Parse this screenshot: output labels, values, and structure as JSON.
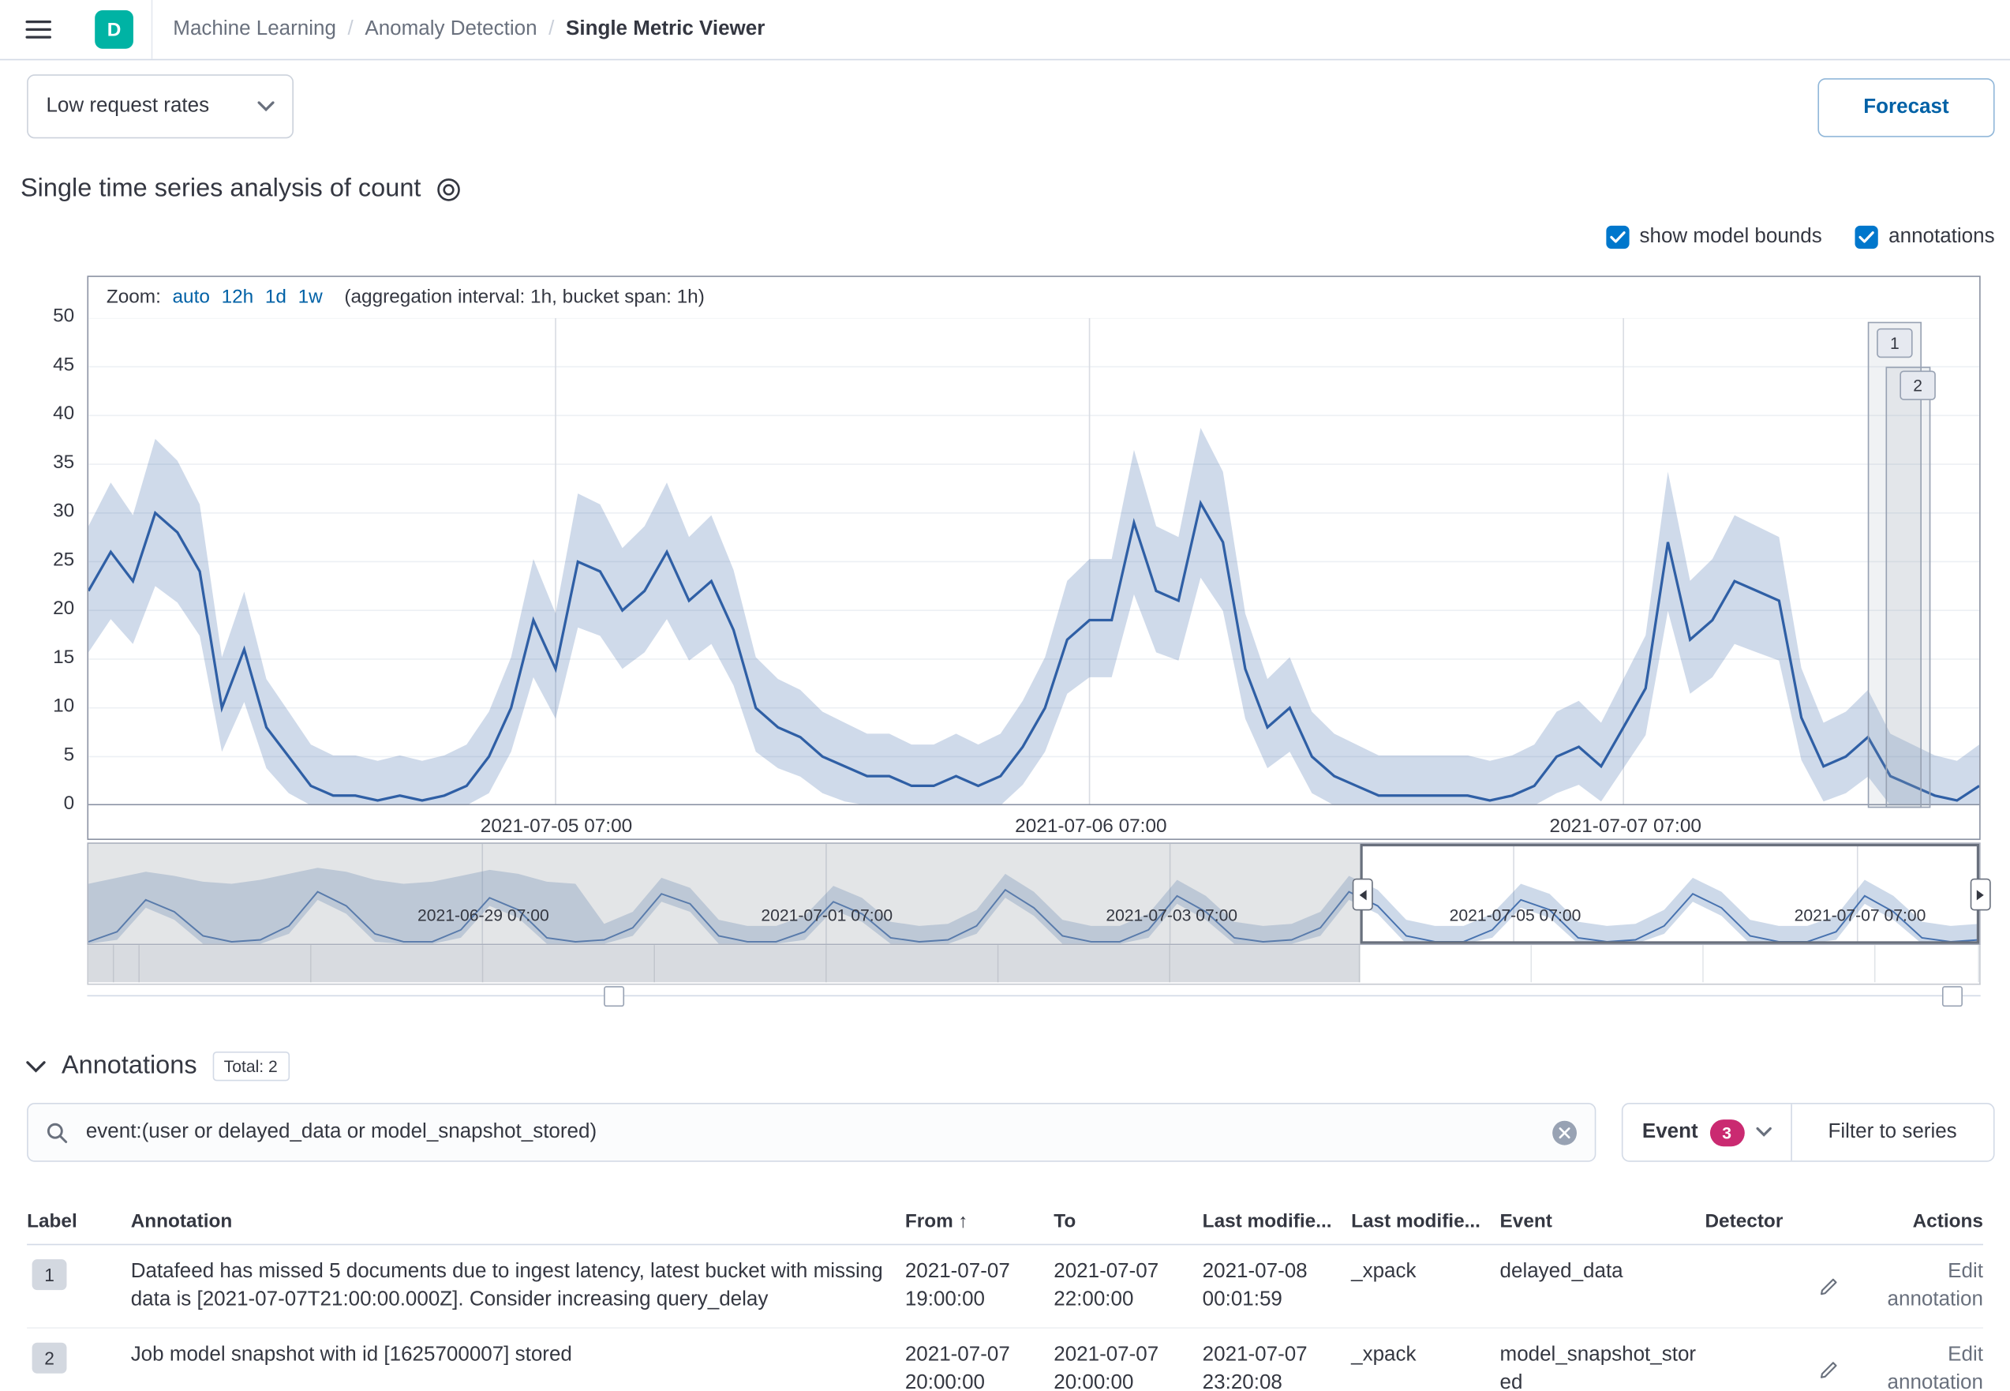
{
  "chrome": {
    "logo_letter": "D",
    "separator": "/",
    "breadcrumbs": [
      {
        "label": "Machine Learning"
      },
      {
        "label": "Anomaly Detection"
      },
      {
        "label": "Single Metric Viewer"
      }
    ]
  },
  "toolbar": {
    "job_selector": "Low request rates",
    "forecast_label": "Forecast"
  },
  "analysis": {
    "title": "Single time series analysis of count",
    "checkboxes": [
      {
        "label": "show model bounds",
        "checked": true
      },
      {
        "label": "annotations",
        "checked": true
      }
    ]
  },
  "chart": {
    "zoom_label": "Zoom:",
    "zoom_options": [
      "auto",
      "12h",
      "1d",
      "1w"
    ],
    "zoom_suffix": "(aggregation interval: 1h, bucket span: 1h)",
    "y_tick_labels": [
      "50",
      "45",
      "40",
      "35",
      "30",
      "25",
      "20",
      "15",
      "10",
      "5",
      "0"
    ]
  },
  "colors": {
    "line_blue": "#2f5fa5",
    "bounds_fill": "#3866a9",
    "link_blue": "#0061a6",
    "checkbox_blue": "#0077cc",
    "accent_pink": "#ca2a71",
    "logo_teal": "#00b3a4"
  },
  "icons": {
    "menu": "hamburger",
    "dataset": "ring",
    "search": "magnifier",
    "clear": "circle-x",
    "edit": "pencil",
    "chevron": "chevron-down",
    "brush_left": "triangle-left",
    "brush_right": "triangle-right"
  },
  "chart_data": {
    "type": "line",
    "title": "Single time series analysis of count",
    "series_name": "count",
    "start": "2021-07-04 10:00",
    "interval": "1h",
    "ylim": [
      0,
      50
    ],
    "y_ticks": [
      0,
      5,
      10,
      15,
      20,
      25,
      30,
      35,
      40,
      45,
      50
    ],
    "x_tick_labels": [
      "2021-07-05 07:00",
      "2021-07-06 07:00",
      "2021-07-07 07:00"
    ],
    "x_tick_indices": [
      21,
      45,
      69
    ],
    "values": [
      22,
      26,
      23,
      30,
      28,
      24,
      10,
      16,
      8,
      5,
      2,
      1,
      1,
      0.5,
      1,
      0.5,
      1,
      2,
      5,
      10,
      19,
      14,
      25,
      24,
      20,
      22,
      26,
      21,
      23,
      18,
      10,
      8,
      7,
      5,
      4,
      3,
      3,
      2,
      2,
      3,
      2,
      3,
      6,
      10,
      17,
      19,
      19,
      29,
      22,
      21,
      31,
      27,
      14,
      8,
      10,
      5,
      3,
      2,
      1,
      1,
      1,
      1,
      1,
      0.5,
      1,
      2,
      5,
      6,
      4,
      8,
      12,
      27,
      17,
      19,
      23,
      22,
      21,
      9,
      4,
      5,
      7,
      3,
      2,
      1,
      0.5,
      2
    ],
    "model_bounds_shown": true,
    "annotations": [
      {
        "label": "1",
        "x_fraction_start": 0.941,
        "x_fraction_end": 0.968
      },
      {
        "label": "2",
        "x_fraction_start": 0.9506,
        "x_fraction_end": 0.9729
      }
    ],
    "context": {
      "x_tick_labels": [
        "2021-06-29 07:00",
        "2021-07-01 07:00",
        "2021-07-03 07:00",
        "2021-07-05 07:00",
        "2021-07-07 07:00"
      ],
      "selection_start_fraction": 0.672,
      "selection_end_fraction": 1.0,
      "values": [
        1,
        6,
        22,
        16,
        4,
        1,
        2,
        9,
        26,
        19,
        5,
        1,
        1,
        7,
        23,
        17,
        3,
        1,
        2,
        8,
        25,
        20,
        4,
        1,
        1,
        6,
        21,
        15,
        3,
        1,
        2,
        9,
        27,
        18,
        4,
        1,
        1,
        7,
        24,
        16,
        3,
        1,
        2,
        8,
        26,
        19,
        4,
        1,
        1,
        7,
        22,
        17,
        3,
        1,
        2,
        9,
        25,
        18,
        4,
        1,
        1,
        6,
        24,
        16,
        3,
        1,
        2
      ],
      "upper": [
        30,
        33,
        36,
        34,
        31,
        30,
        32,
        35,
        38,
        36,
        32,
        30,
        31,
        34,
        37,
        35,
        31,
        30,
        10,
        16,
        33,
        28,
        12,
        9,
        9,
        14,
        29,
        23,
        11,
        9,
        10,
        17,
        35,
        26,
        12,
        9,
        9,
        15,
        32,
        24,
        11,
        9,
        10,
        16,
        34,
        27,
        12,
        9,
        9,
        15,
        30,
        25,
        11,
        9,
        10,
        17,
        33,
        26,
        12,
        9,
        9,
        14,
        32,
        24,
        11,
        9,
        10
      ]
    }
  },
  "annotations_section": {
    "title": "Annotations",
    "total_badge": "Total: 2",
    "search_value": "event:(user or delayed_data or model_snapshot_stored)",
    "event_filter_label": "Event",
    "event_filter_count": "3",
    "filter_button": "Filter to series",
    "table": {
      "sort_arrow": "↑",
      "headers": [
        "Label",
        "Annotation",
        "From",
        "To",
        "Last modifie...",
        "Last modifie...",
        "Event",
        "Detector",
        "Actions"
      ],
      "rows": [
        {
          "label": "1",
          "annotation": "Datafeed has missed 5 documents due to ingest latency, latest bucket with missing data is [2021-07-07T21:00:00.000Z]. Consider increasing query_delay",
          "from": "2021-07-07 19:00:00",
          "to": "2021-07-07 22:00:00",
          "last_modified": "2021-07-08 00:01:59",
          "last_modified_by": "_xpack",
          "event": "delayed_data",
          "detector": "",
          "action": "Edit annotation"
        },
        {
          "label": "2",
          "annotation": "Job model snapshot with id [1625700007] stored",
          "from": "2021-07-07 20:00:00",
          "to": "2021-07-07 20:00:00",
          "last_modified": "2021-07-07 23:20:08",
          "last_modified_by": "_xpack",
          "event": "model_snapshot_stored",
          "detector": "",
          "action": "Edit annotation"
        }
      ]
    }
  }
}
